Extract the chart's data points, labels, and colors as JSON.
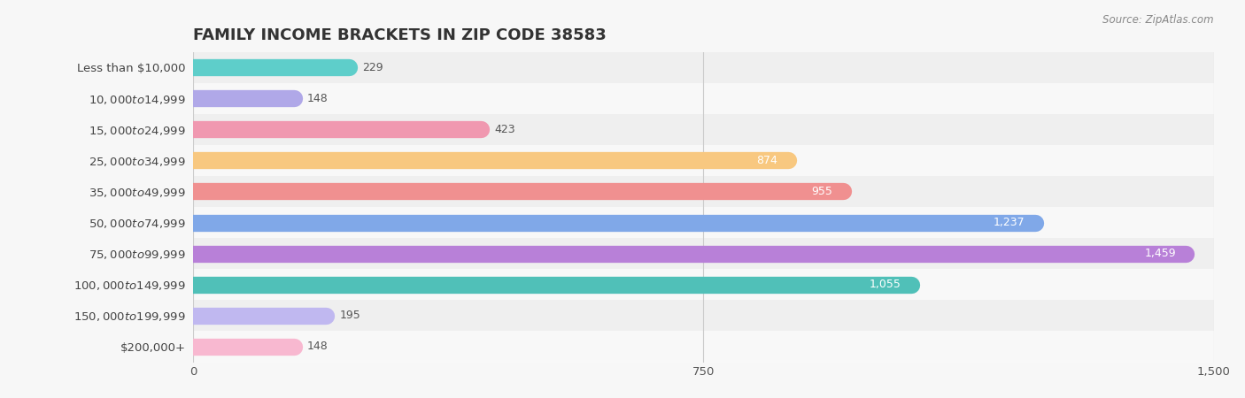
{
  "title": "FAMILY INCOME BRACKETS IN ZIP CODE 38583",
  "source": "Source: ZipAtlas.com",
  "categories": [
    "Less than $10,000",
    "$10,000 to $14,999",
    "$15,000 to $24,999",
    "$25,000 to $34,999",
    "$35,000 to $49,999",
    "$50,000 to $74,999",
    "$75,000 to $99,999",
    "$100,000 to $149,999",
    "$150,000 to $199,999",
    "$200,000+"
  ],
  "values": [
    229,
    148,
    423,
    874,
    955,
    1237,
    1459,
    1055,
    195,
    148
  ],
  "bar_colors": [
    "#5ececa",
    "#b0a8e8",
    "#f098b0",
    "#f8c880",
    "#f09090",
    "#80a8e8",
    "#b880d8",
    "#50c0b8",
    "#c0b8f0",
    "#f8b8d0"
  ],
  "bg_color": "#f7f7f7",
  "xlim": [
    0,
    1500
  ],
  "xticks": [
    0,
    750,
    1500
  ],
  "title_fontsize": 13,
  "label_fontsize": 9.5,
  "value_fontsize": 9,
  "bar_height": 0.55,
  "row_bg_colors": [
    "#efefef",
    "#f8f8f8"
  ]
}
